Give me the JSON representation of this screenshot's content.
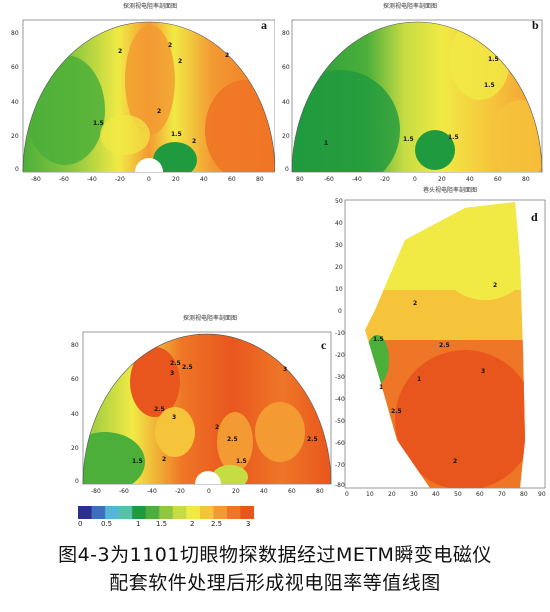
{
  "panels": {
    "a": {
      "label": "a",
      "title": "探测视电阻率剖面图",
      "xticks": [
        "-80",
        "-60",
        "-40",
        "-20",
        "0",
        "20",
        "40",
        "60",
        "80"
      ],
      "yticks": [
        "80",
        "60",
        "40",
        "20",
        "0"
      ],
      "contours": [
        "2",
        "2",
        "2",
        "2",
        "1.5",
        "2",
        "1.5",
        "2"
      ]
    },
    "b": {
      "label": "b",
      "title": "探测视电阻率剖面图",
      "xticks": [
        "80",
        "-60",
        "-40",
        "-20",
        "0",
        "20",
        "40",
        "60",
        "80"
      ],
      "yticks": [
        "80",
        "60",
        "40",
        "20",
        "0"
      ],
      "contours": [
        "1.5",
        "1.5",
        "1",
        "1.5",
        "1.5"
      ]
    },
    "c": {
      "label": "c",
      "title": "探测视电阻率剖面图",
      "xticks": [
        "-80",
        "-60",
        "-40",
        "-20",
        "0",
        "20",
        "40",
        "60",
        "80"
      ],
      "yticks": [
        "80",
        "60",
        "40",
        "20",
        "0"
      ],
      "contours": [
        "2.5",
        "2.5",
        "3",
        "2.5",
        "3",
        "2",
        "2.5",
        "2.5",
        "1.5",
        "2",
        "1.5",
        "3"
      ]
    },
    "d": {
      "label": "d",
      "title": "巷头视电阻率剖面图",
      "xticks": [
        "0",
        "10",
        "20",
        "30",
        "40",
        "50",
        "60",
        "70",
        "80",
        "90"
      ],
      "yticks": [
        "50",
        "40",
        "30",
        "20",
        "10",
        "0",
        "-10",
        "-20",
        "-30",
        "-40",
        "-50",
        "-60",
        "-70",
        "-80"
      ],
      "contours": [
        "2",
        "2",
        "1.5",
        "2.5",
        "1",
        "3",
        "1",
        "2.5",
        "2"
      ]
    }
  },
  "colorbar": {
    "ticks": [
      "0",
      "0.5",
      "1",
      "1.5",
      "2",
      "2.5",
      "3"
    ],
    "colors": [
      "#2b2f8f",
      "#3a6fc2",
      "#52b6d8",
      "#55c2a8",
      "#1f9a3f",
      "#4caf3a",
      "#8fc83f",
      "#c7dc43",
      "#f1ea45",
      "#f6c43b",
      "#f39a32",
      "#ef7626",
      "#e9561d"
    ]
  },
  "caption": {
    "line1": "图4-3为1101切眼物探数据经过METM瞬变电磁仪",
    "line2": "配套软件处理后形成视电阻率等值线图"
  }
}
